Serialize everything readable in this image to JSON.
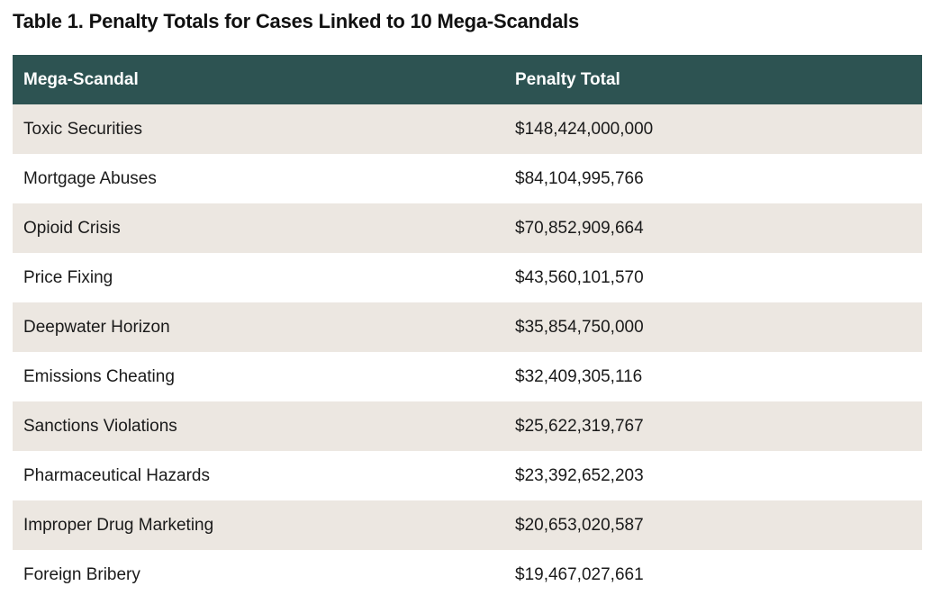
{
  "title": "Table 1. Penalty Totals for Cases Linked to 10 Mega-Scandals",
  "columns": {
    "scandal": "Mega-Scandal",
    "penalty": "Penalty Total"
  },
  "rows": [
    {
      "scandal": "Toxic Securities",
      "penalty": "$148,424,000,000"
    },
    {
      "scandal": "Mortgage Abuses",
      "penalty": "$84,104,995,766"
    },
    {
      "scandal": "Opioid Crisis",
      "penalty": "$70,852,909,664"
    },
    {
      "scandal": "Price Fixing",
      "penalty": "$43,560,101,570"
    },
    {
      "scandal": "Deepwater Horizon",
      "penalty": "$35,854,750,000"
    },
    {
      "scandal": "Emissions Cheating",
      "penalty": "$32,409,305,116"
    },
    {
      "scandal": "Sanctions Violations",
      "penalty": "$25,622,319,767"
    },
    {
      "scandal": "Pharmaceutical Hazards",
      "penalty": "$23,392,652,203"
    },
    {
      "scandal": "Improper Drug Marketing",
      "penalty": "$20,653,020,587"
    },
    {
      "scandal": "Foreign Bribery",
      "penalty": "$19,467,027,661"
    }
  ],
  "colors": {
    "header_bg": "#2d5352",
    "stripe_bg": "#ece7e1"
  }
}
